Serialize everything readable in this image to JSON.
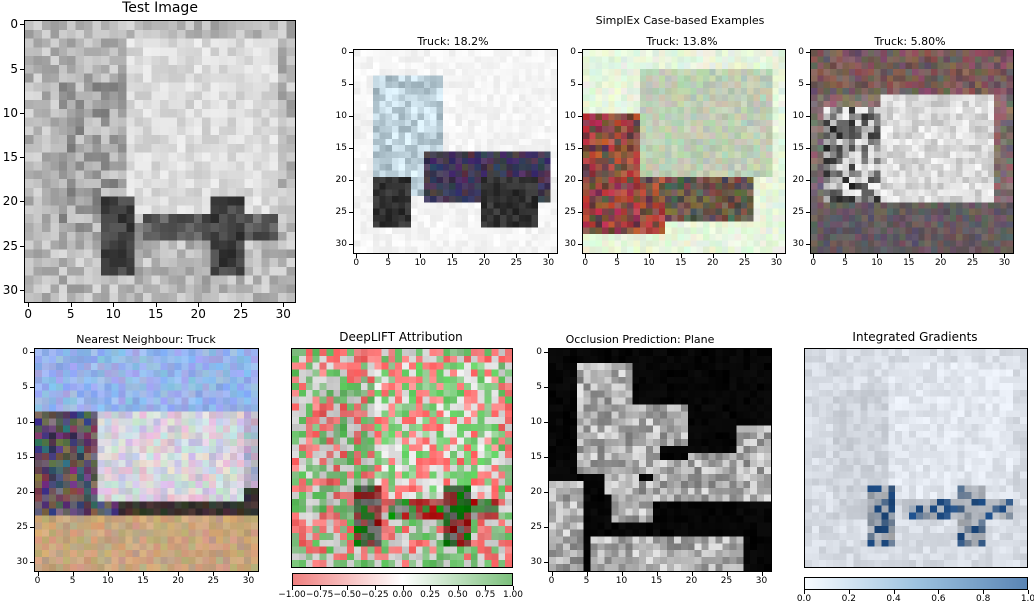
{
  "titles": {
    "test_image": "Test Image",
    "simplex_header": "SimplEx Case-based Examples",
    "example1": "Truck: 18.2%",
    "example2": "Truck: 13.8%",
    "example3": "Truck: 5.80%",
    "nearest": "Nearest Neighbour: Truck",
    "deeplift": "DeepLIFT Attribution",
    "occlusion": "Occlusion Prediction: Plane",
    "integrated": "Integrated Gradients"
  },
  "axis_ticks": [
    "0",
    "5",
    "10",
    "15",
    "20",
    "25",
    "30"
  ],
  "axis_tick_values": [
    0,
    5,
    10,
    15,
    20,
    25,
    30
  ],
  "deeplift_colorbar": {
    "ticks": [
      "−1.00",
      "−0.75",
      "−0.50",
      "−0.25",
      "0.00",
      "0.25",
      "0.50",
      "0.75",
      "1.00"
    ],
    "range": [
      -1.0,
      1.0
    ],
    "colors": [
      "#f08080",
      "#ffffff",
      "#7cc07c"
    ]
  },
  "ig_colorbar": {
    "ticks": [
      "0.0",
      "0.2",
      "0.4",
      "0.6",
      "0.8",
      "1.0"
    ],
    "range": [
      0.0,
      1.0
    ],
    "colors": [
      "#f7fbff",
      "#9ec3df",
      "#5a85b5"
    ]
  }
}
